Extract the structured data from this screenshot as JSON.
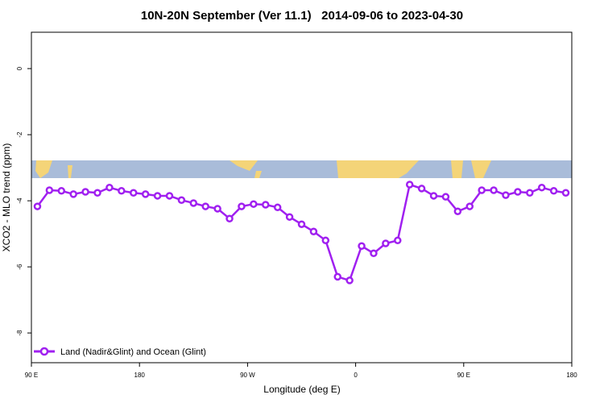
{
  "chart_data": {
    "type": "line",
    "title": "10N-20N September (Ver 11.1)   2014-09-06 to 2023-04-30",
    "x_label": "Longitude (deg E)",
    "y_label": "XCO2 - MLO trend (ppm)",
    "x": [
      95,
      105,
      115,
      125,
      135,
      145,
      155,
      165,
      175,
      185,
      195,
      205,
      215,
      225,
      235,
      245,
      255,
      265,
      275,
      285,
      295,
      305,
      315,
      325,
      335,
      345,
      355,
      365,
      375,
      385,
      395,
      405,
      415,
      425,
      435,
      445,
      455,
      465,
      475,
      485,
      495,
      505,
      515,
      525,
      535
    ],
    "series": [
      {
        "name": "Land (Nadir&Glint) and Ocean (Glint)",
        "color": "#a020f0",
        "values": [
          -4.17,
          -3.68,
          -3.7,
          -3.8,
          -3.73,
          -3.76,
          -3.6,
          -3.7,
          -3.76,
          -3.8,
          -3.85,
          -3.85,
          -3.98,
          -4.07,
          -4.17,
          -4.24,
          -4.54,
          -4.17,
          -4.1,
          -4.12,
          -4.2,
          -4.49,
          -4.71,
          -4.93,
          -5.2,
          -6.3,
          -6.41,
          -5.37,
          -5.59,
          -5.29,
          -5.2,
          -3.51,
          -3.63,
          -3.85,
          -3.88,
          -4.32,
          -4.17,
          -3.68,
          -3.68,
          -3.83,
          -3.73,
          -3.76,
          -3.6,
          -3.7,
          -3.76
        ]
      }
    ],
    "xlim": [
      90,
      540
    ],
    "xticks": [
      {
        "value": 90,
        "label": "90 E"
      },
      180,
      {
        "value": 270,
        "label": "90 W"
      },
      {
        "value": 360,
        "label": "0"
      },
      {
        "value": 450,
        "label": "90 E"
      },
      {
        "value": 540,
        "label": "180"
      }
    ],
    "ylim": [
      -8.9,
      1.1
    ],
    "yticks": [
      0,
      -2,
      -4,
      -6,
      -8
    ],
    "legend": "bottom-left"
  }
}
